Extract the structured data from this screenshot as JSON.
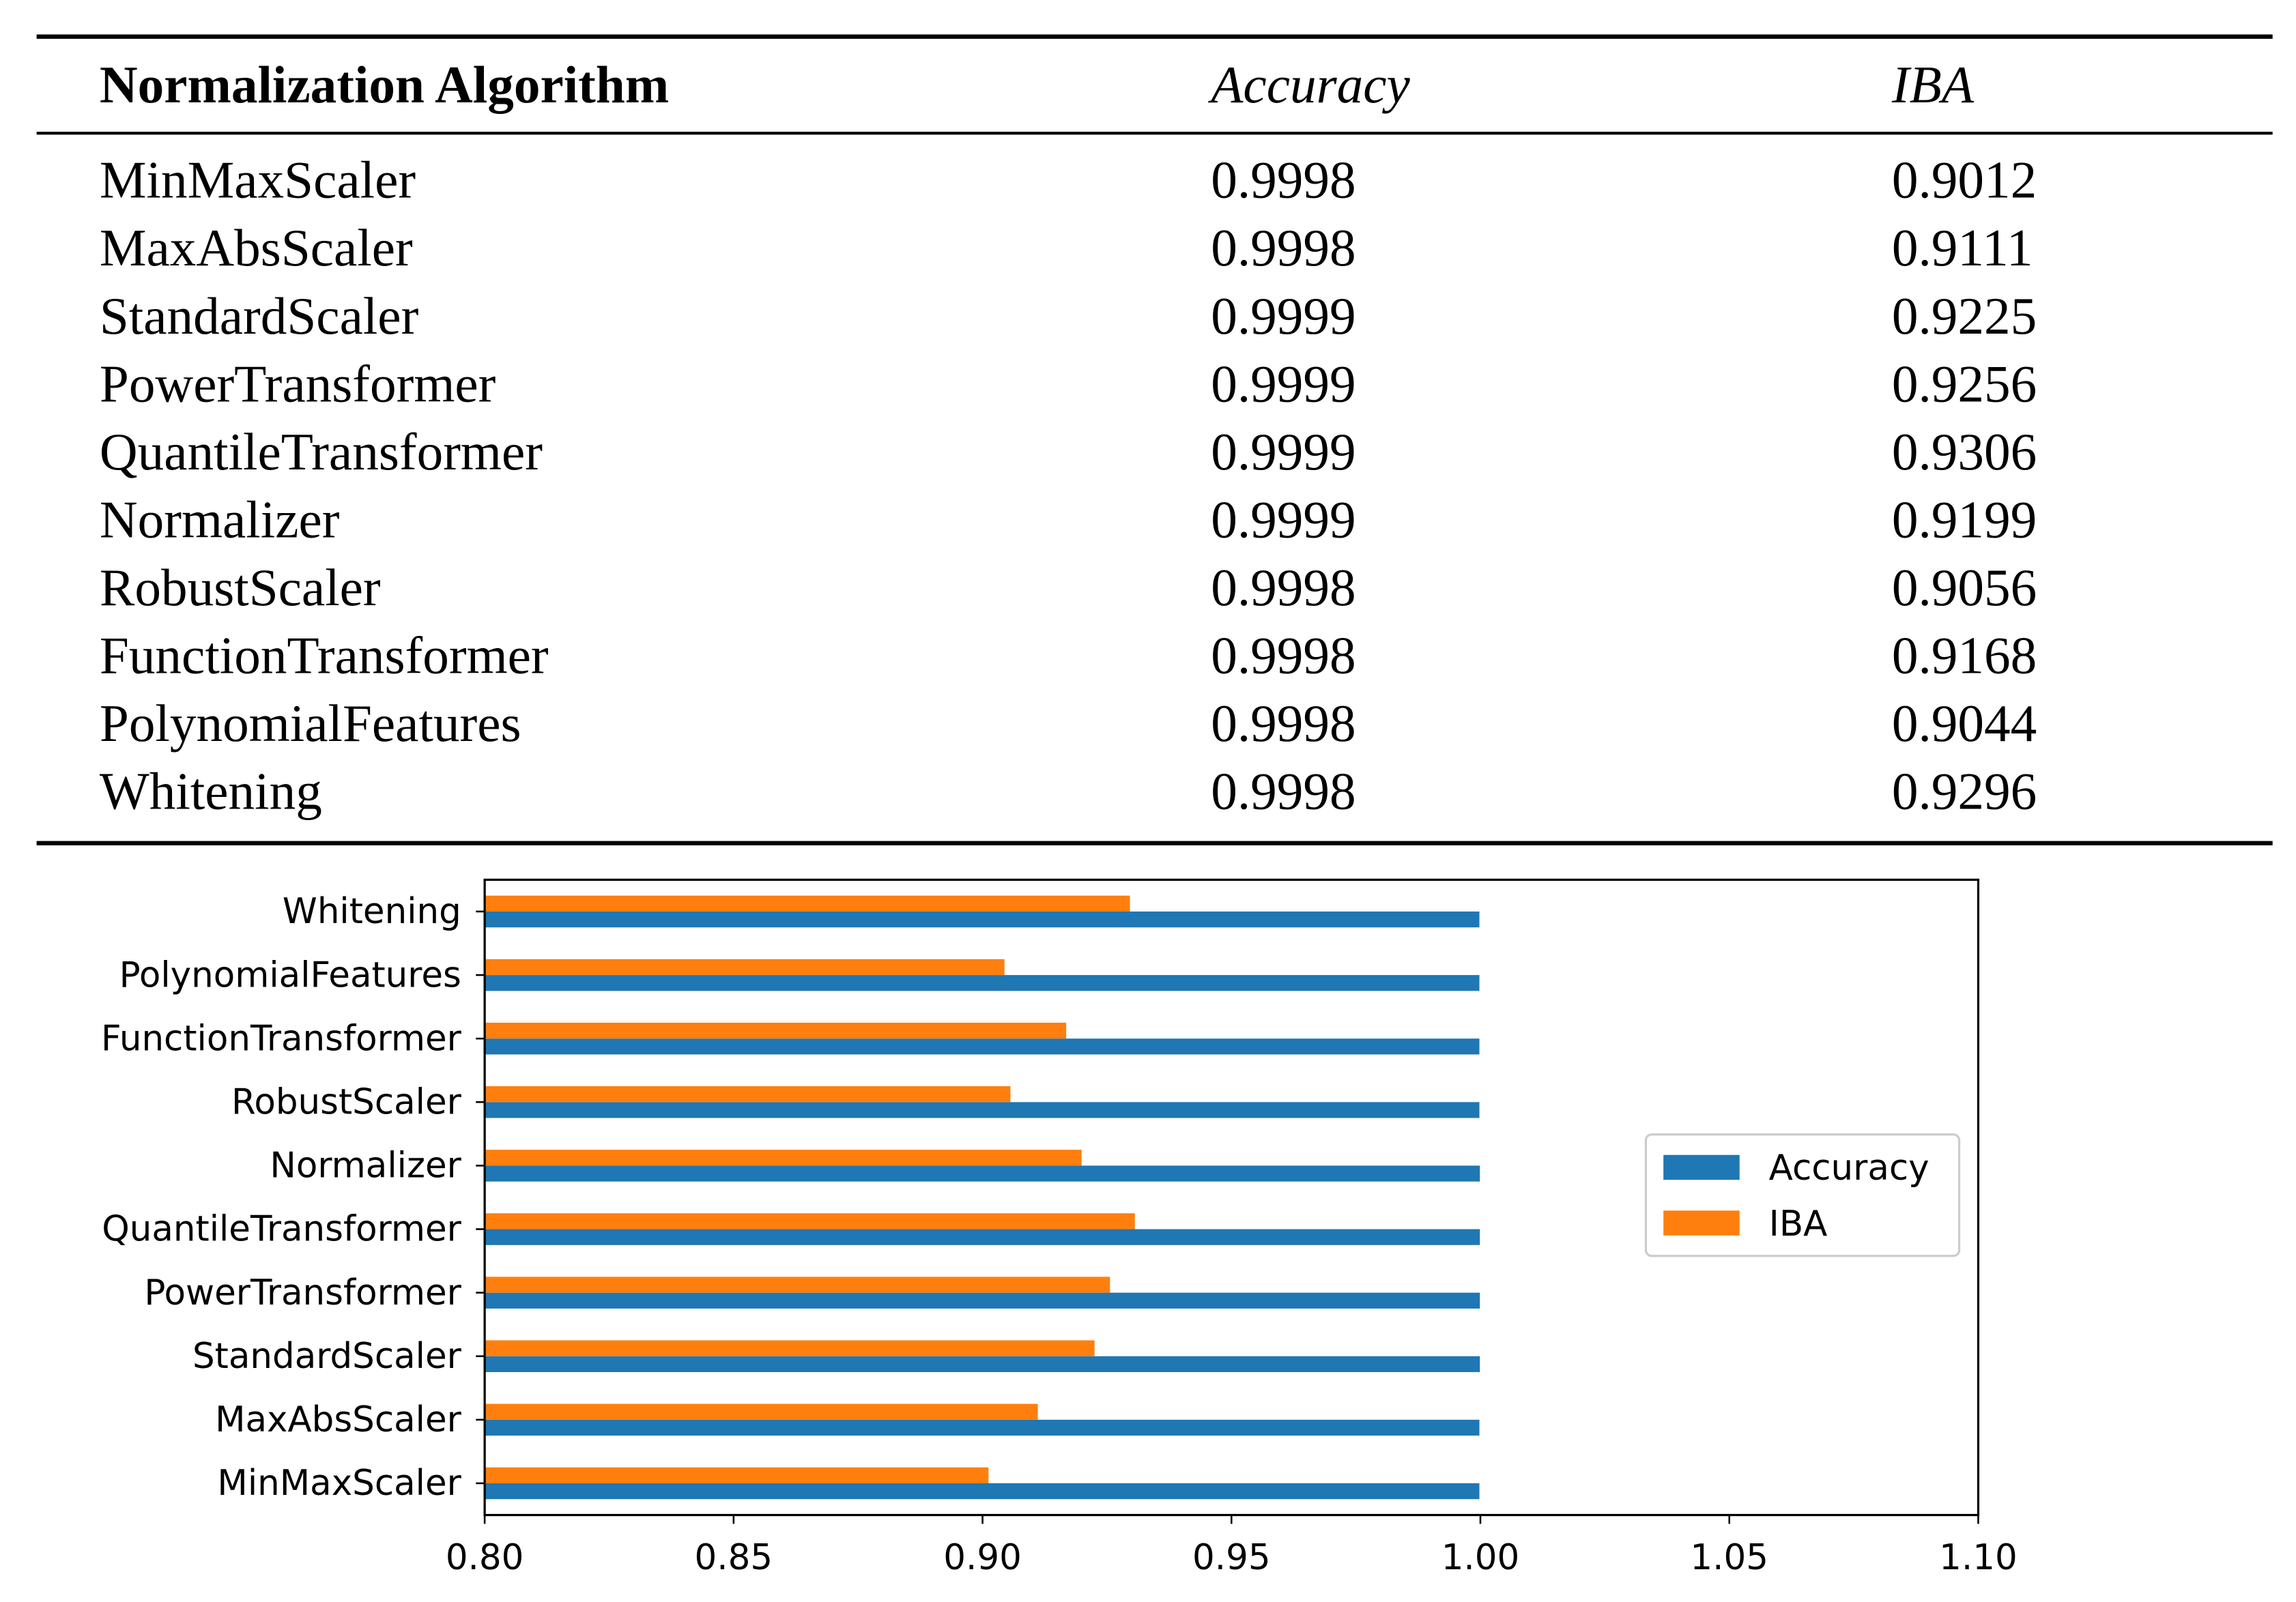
{
  "table": {
    "header": [
      "Normalization Algorithm",
      "Accuracy",
      "IBA"
    ],
    "rows": [
      [
        "MinMaxScaler",
        "0.9998",
        "0.9012"
      ],
      [
        "MaxAbsScaler",
        "0.9998",
        "0.9111"
      ],
      [
        "StandardScaler",
        "0.9999",
        "0.9225"
      ],
      [
        "PowerTransformer",
        "0.9999",
        "0.9256"
      ],
      [
        "QuantileTransformer",
        "0.9999",
        "0.9306"
      ],
      [
        "Normalizer",
        "0.9999",
        "0.9199"
      ],
      [
        "RobustScaler",
        "0.9998",
        "0.9056"
      ],
      [
        "FunctionTransformer",
        "0.9998",
        "0.9168"
      ],
      [
        "PolynomialFeatures",
        "0.9998",
        "0.9044"
      ],
      [
        "Whitening",
        "0.9998",
        "0.9296"
      ]
    ]
  },
  "chart_data": {
    "type": "barh",
    "categories": [
      "MinMaxScaler",
      "MaxAbsScaler",
      "StandardScaler",
      "PowerTransformer",
      "QuantileTransformer",
      "Normalizer",
      "RobustScaler",
      "FunctionTransformer",
      "PolynomialFeatures",
      "Whitening"
    ],
    "series": [
      {
        "name": "Accuracy",
        "color": "#1f77b4",
        "values": [
          0.9998,
          0.9998,
          0.9999,
          0.9999,
          0.9999,
          0.9999,
          0.9998,
          0.9998,
          0.9998,
          0.9998
        ]
      },
      {
        "name": "IBA",
        "color": "#ff7f0e",
        "values": [
          0.9012,
          0.9111,
          0.9225,
          0.9256,
          0.9306,
          0.9199,
          0.9056,
          0.9168,
          0.9044,
          0.9296
        ]
      }
    ],
    "xlim": [
      0.8,
      1.1
    ],
    "xticks": [
      {
        "value": 0.8,
        "label": "0.80"
      },
      {
        "value": 0.85,
        "label": "0.85"
      },
      {
        "value": 0.9,
        "label": "0.90"
      },
      {
        "value": 0.95,
        "label": "0.95"
      },
      {
        "value": 1.0,
        "label": "1.00"
      },
      {
        "value": 1.05,
        "label": "1.05"
      },
      {
        "value": 1.1,
        "label": "1.10"
      }
    ],
    "legend": "center right",
    "grid": false
  }
}
